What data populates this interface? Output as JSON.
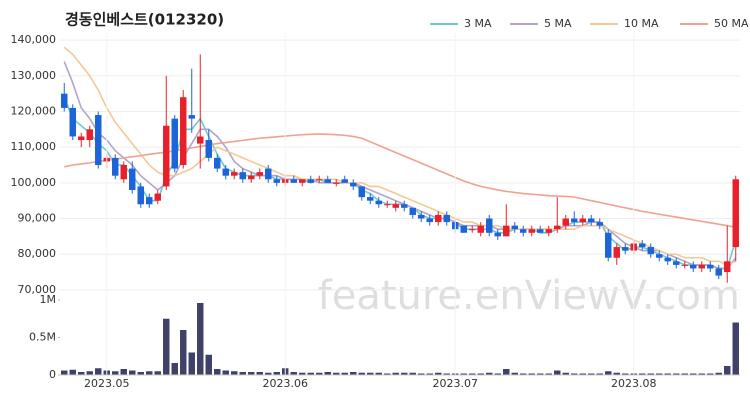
{
  "watermark": "feature.enViewV.com",
  "chart_data": [
    {
      "type": "candlestick",
      "title": "경동인베스트(012320)",
      "open": [
        125000,
        121000,
        112000,
        112000,
        119000,
        106000,
        107000,
        101000,
        104000,
        99000,
        96000,
        95000,
        99000,
        118000,
        105000,
        119000,
        111000,
        112000,
        107000,
        104000,
        102000,
        103000,
        101000,
        102000,
        104000,
        101000,
        100000,
        101000,
        100000,
        101000,
        101000,
        101000,
        100000,
        101000,
        100000,
        99000,
        96000,
        95000,
        94000,
        93000,
        94000,
        93000,
        91000,
        90000,
        89000,
        91000,
        89000,
        88000,
        87000,
        86000,
        90000,
        86000,
        85000,
        88000,
        87000,
        86000,
        87000,
        86000,
        87000,
        88000,
        90000,
        89000,
        90000,
        89000,
        86000,
        79000,
        82000,
        81000,
        83000,
        82000,
        80000,
        79000,
        78000,
        77000,
        77000,
        76000,
        77000,
        76000,
        75000,
        82000
      ],
      "high": [
        128000,
        122000,
        114000,
        116000,
        120000,
        108000,
        108000,
        106000,
        106000,
        100000,
        97000,
        98000,
        130000,
        119000,
        126000,
        132000,
        136000,
        115000,
        108000,
        105000,
        104000,
        104000,
        103000,
        104000,
        105000,
        102000,
        102000,
        102000,
        101000,
        102000,
        102000,
        102000,
        101000,
        102000,
        101000,
        99000,
        97000,
        96000,
        95000,
        95000,
        95000,
        93000,
        92000,
        91000,
        92000,
        92000,
        90000,
        88000,
        88000,
        89000,
        91000,
        87000,
        94000,
        89000,
        88000,
        88000,
        88000,
        88000,
        96000,
        91000,
        92000,
        91000,
        91000,
        90000,
        87000,
        83000,
        83000,
        84000,
        84000,
        83000,
        81000,
        80000,
        79000,
        78000,
        78000,
        78000,
        78000,
        77000,
        88000,
        102000
      ],
      "low": [
        120000,
        112000,
        110000,
        110000,
        104000,
        104000,
        101000,
        100000,
        97000,
        93000,
        93000,
        94000,
        98000,
        103000,
        104000,
        114000,
        104000,
        106000,
        103000,
        101000,
        101000,
        100000,
        100000,
        101000,
        100000,
        99000,
        99000,
        100000,
        99000,
        100000,
        100000,
        100000,
        99000,
        100000,
        98000,
        95000,
        94000,
        93000,
        93000,
        92000,
        92000,
        90000,
        89000,
        88000,
        88000,
        88000,
        86000,
        86000,
        86000,
        85000,
        85000,
        84000,
        85000,
        86000,
        85000,
        85000,
        86000,
        85000,
        86000,
        87000,
        88000,
        88000,
        88000,
        87000,
        78000,
        77000,
        80000,
        80000,
        81000,
        79000,
        78000,
        77000,
        76000,
        76000,
        75000,
        75000,
        75000,
        73000,
        72000,
        78000
      ],
      "close": [
        121000,
        113000,
        113000,
        115000,
        105000,
        107000,
        102000,
        105000,
        98000,
        94000,
        94000,
        97000,
        116000,
        104000,
        124000,
        118000,
        113000,
        107000,
        104000,
        102000,
        103000,
        101000,
        102000,
        103000,
        101000,
        100000,
        101000,
        100000,
        101000,
        100000,
        101000,
        100000,
        100000,
        100000,
        99000,
        96000,
        95000,
        94000,
        94000,
        94000,
        93000,
        91000,
        90000,
        89000,
        91000,
        89000,
        87000,
        86000,
        87000,
        88000,
        86000,
        85000,
        88000,
        87000,
        86000,
        87000,
        86000,
        87000,
        88000,
        90000,
        89000,
        90000,
        89000,
        88000,
        79000,
        82000,
        81000,
        83000,
        82000,
        80000,
        79000,
        78000,
        77000,
        77000,
        76000,
        77000,
        76000,
        74000,
        78000,
        101000
      ],
      "up_color": "#e8202a",
      "down_color": "#1b64da",
      "series": [
        {
          "name": "3 MA",
          "color": "#6cc8d2",
          "values": [
            124000,
            118000,
            116000,
            114000,
            111000,
            109000,
            105000,
            105000,
            102000,
            99000,
            95000,
            95000,
            102000,
            106000,
            115000,
            115000,
            118000,
            113000,
            108000,
            104000,
            103000,
            102000,
            102000,
            102000,
            102000,
            101000,
            101000,
            101000,
            101000,
            100000,
            101000,
            100000,
            100000,
            100000,
            100000,
            98000,
            97000,
            95000,
            94000,
            94000,
            94000,
            93000,
            91000,
            90000,
            90000,
            90000,
            89000,
            87000,
            87000,
            87000,
            87000,
            86000,
            86000,
            87000,
            87000,
            87000,
            86000,
            86000,
            87000,
            88000,
            89000,
            89000,
            89000,
            89000,
            85000,
            83000,
            81000,
            82000,
            82000,
            81000,
            80000,
            79000,
            78000,
            77000,
            77000,
            77000,
            77000,
            76000,
            76000,
            84000
          ]
        },
        {
          "name": "5 MA",
          "color": "#b3a3cc",
          "values": [
            134000,
            128000,
            121000,
            118000,
            114000,
            112000,
            109000,
            107000,
            105000,
            102000,
            100000,
            98000,
            100000,
            102000,
            107000,
            111000,
            115000,
            115000,
            113000,
            110000,
            106000,
            104000,
            103000,
            102000,
            102000,
            102000,
            101000,
            101000,
            101000,
            101000,
            100000,
            100000,
            100000,
            100000,
            100000,
            99000,
            98000,
            97000,
            96000,
            95000,
            94000,
            93000,
            92000,
            91000,
            90000,
            90000,
            89000,
            88000,
            88000,
            88000,
            88000,
            87000,
            87000,
            87000,
            87000,
            87000,
            87000,
            87000,
            87000,
            88000,
            88000,
            88000,
            89000,
            89000,
            87000,
            85000,
            83000,
            82000,
            81000,
            81000,
            81000,
            80000,
            79000,
            78000,
            77000,
            77000,
            77000,
            76000,
            76000,
            79000
          ]
        },
        {
          "name": "10 MA",
          "color": "#f2c994",
          "values": [
            138000,
            136000,
            133000,
            130000,
            126000,
            121000,
            117000,
            114000,
            111000,
            108000,
            105000,
            103000,
            102000,
            102000,
            103000,
            104000,
            106000,
            108000,
            110000,
            109000,
            108000,
            107000,
            106000,
            105000,
            104000,
            103000,
            102000,
            102000,
            101000,
            101000,
            101000,
            101000,
            101000,
            100000,
            100000,
            100000,
            99000,
            99000,
            98000,
            97000,
            96000,
            95000,
            94000,
            93000,
            92000,
            91000,
            90000,
            89000,
            89000,
            88000,
            88000,
            88000,
            87000,
            87000,
            87000,
            87000,
            87000,
            87000,
            87000,
            87000,
            87000,
            88000,
            88000,
            88000,
            87000,
            86000,
            85000,
            84000,
            83000,
            82000,
            81000,
            80000,
            80000,
            79000,
            79000,
            79000,
            78000,
            78000,
            77000,
            78000
          ]
        },
        {
          "name": "50 MA",
          "color": "#f2a08f",
          "values": [
            104500,
            105000,
            105300,
            105600,
            106000,
            106300,
            106600,
            107000,
            107300,
            107600,
            108000,
            108300,
            108600,
            109000,
            109400,
            109800,
            110200,
            110600,
            111000,
            111300,
            111600,
            111900,
            112200,
            112500,
            112700,
            112900,
            113100,
            113300,
            113500,
            113600,
            113700,
            113600,
            113500,
            113300,
            113000,
            112500,
            111500,
            110500,
            109500,
            108500,
            107500,
            106500,
            105500,
            104500,
            103500,
            102500,
            101500,
            100500,
            99700,
            99000,
            98500,
            98000,
            97600,
            97300,
            97000,
            96800,
            96600,
            96400,
            96300,
            96200,
            96000,
            95500,
            95000,
            94500,
            94000,
            93500,
            93000,
            92500,
            92000,
            91600,
            91200,
            90800,
            90400,
            90000,
            89600,
            89200,
            88800,
            88400,
            88000,
            87500
          ]
        }
      ],
      "ylim": [
        68000,
        142000
      ],
      "yticks": [
        {
          "value": 70000,
          "label": "70,000"
        },
        {
          "value": 80000,
          "label": "80,000"
        },
        {
          "value": 90000,
          "label": "90,000"
        },
        {
          "value": 100000,
          "label": "100,000"
        },
        {
          "value": 110000,
          "label": "110,000"
        },
        {
          "value": 120000,
          "label": "120,000"
        },
        {
          "value": 130000,
          "label": "130,000"
        },
        {
          "value": 140000,
          "label": "140,000"
        }
      ],
      "grid": true,
      "legend": "top-right"
    },
    {
      "type": "bar",
      "categories": [
        null,
        null,
        null,
        null,
        null,
        "2023.05",
        null,
        null,
        null,
        null,
        null,
        null,
        null,
        null,
        null,
        null,
        null,
        null,
        null,
        null,
        null,
        null,
        null,
        null,
        null,
        null,
        "2023.06",
        null,
        null,
        null,
        null,
        null,
        null,
        null,
        null,
        null,
        null,
        null,
        null,
        null,
        null,
        null,
        null,
        null,
        null,
        null,
        "2023.07",
        null,
        null,
        null,
        null,
        null,
        null,
        null,
        null,
        null,
        null,
        null,
        null,
        null,
        null,
        null,
        null,
        null,
        null,
        null,
        null,
        "2023.08",
        null,
        null,
        null,
        null,
        null,
        null,
        null,
        null,
        null,
        null,
        null,
        null
      ],
      "values": [
        60000,
        70000,
        40000,
        50000,
        90000,
        60000,
        50000,
        80000,
        60000,
        40000,
        50000,
        50000,
        750000,
        160000,
        600000,
        300000,
        960000,
        270000,
        80000,
        60000,
        50000,
        40000,
        40000,
        40000,
        30000,
        40000,
        90000,
        40000,
        30000,
        30000,
        30000,
        40000,
        30000,
        30000,
        40000,
        30000,
        30000,
        30000,
        20000,
        30000,
        30000,
        30000,
        20000,
        20000,
        30000,
        20000,
        20000,
        20000,
        20000,
        20000,
        30000,
        20000,
        80000,
        30000,
        20000,
        20000,
        20000,
        20000,
        60000,
        30000,
        20000,
        20000,
        20000,
        20000,
        50000,
        30000,
        20000,
        20000,
        20000,
        20000,
        20000,
        20000,
        20000,
        20000,
        20000,
        20000,
        20000,
        30000,
        120000,
        700000
      ],
      "color": "#3f4168",
      "ylim": [
        0,
        1000000
      ],
      "yticks": [
        0,
        {
          "value": 500000,
          "label": "0.5M"
        },
        {
          "value": 1000000,
          "label": "1M"
        }
      ]
    }
  ]
}
